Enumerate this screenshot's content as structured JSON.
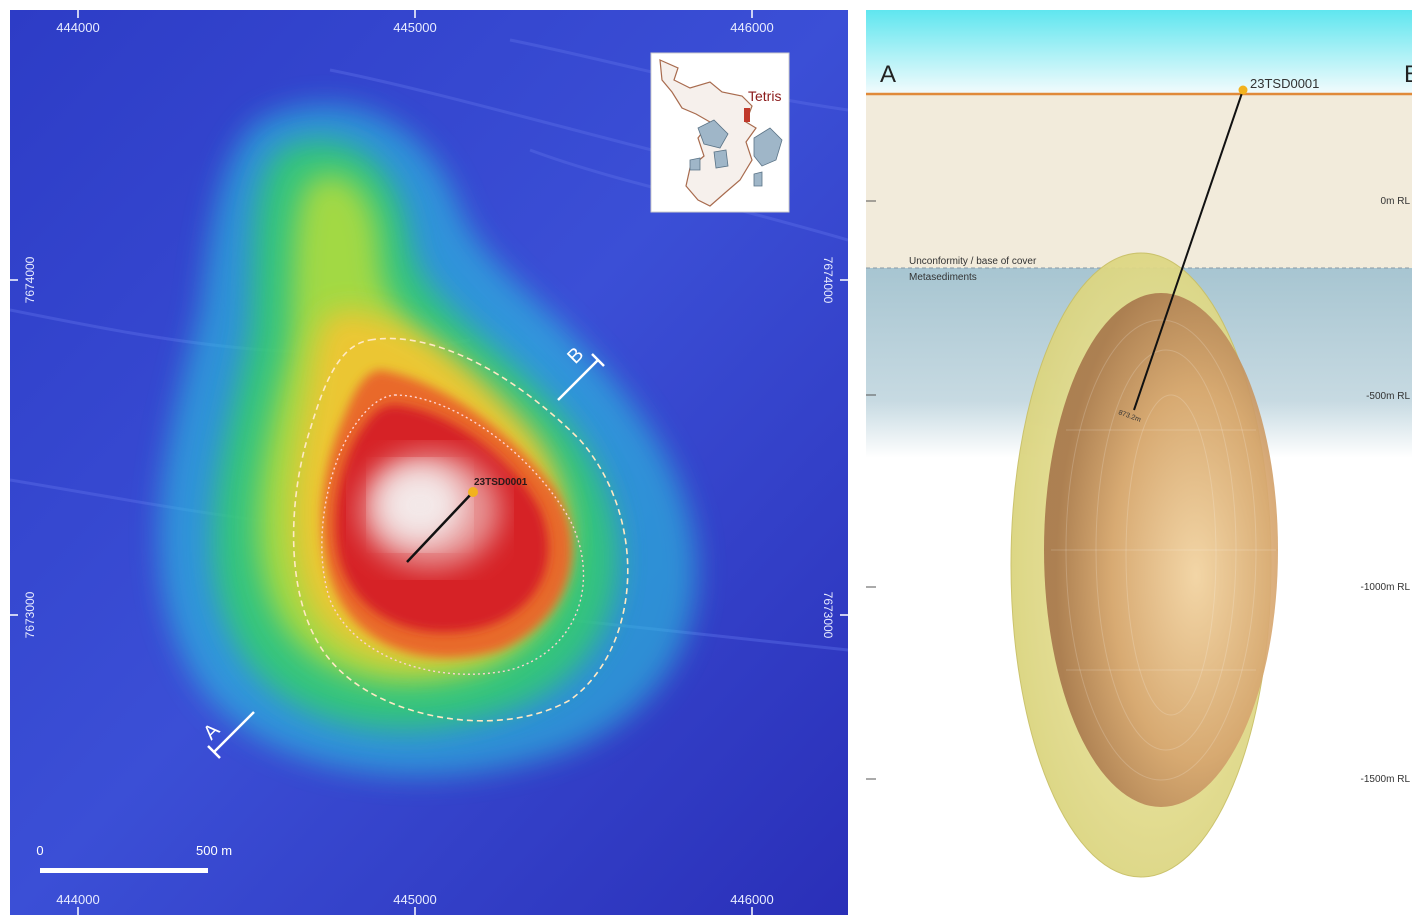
{
  "map": {
    "grid_labels_x": [
      "444000",
      "445000",
      "446000"
    ],
    "grid_labels_y": [
      "7674000",
      "7673000"
    ],
    "drillhole_label": "23TSD0001",
    "section_start_label": "A",
    "section_end_label": "B",
    "scale_zero": "0",
    "scale_length": "500 m",
    "inset_title": "Tetris",
    "colors": {
      "background_low": "#3a3fd0",
      "anomaly_high": "#f4ecec",
      "anomaly_red": "#d8262a",
      "drillhole_collar": "#f2b21d",
      "contour_line": "#ffe9c4"
    }
  },
  "section": {
    "end_label_a": "A",
    "end_label_b": "B",
    "drillhole_label": "23TSD0001",
    "rl_labels": [
      "0m RL",
      "-500m RL",
      "-1000m RL",
      "-1500m RL"
    ],
    "unconformity_label": "Unconformity / base of cover",
    "basement_label": "Metasediments",
    "hole_depth_label": "873.2m",
    "colors": {
      "sky_top": "#5fe6ef",
      "cover": "#f2ebdb",
      "metasediments": "#a7c5d1",
      "surface_line": "#e08a3a",
      "outer_shell": "#e6e08e",
      "inner_body": "#d3a36c"
    }
  }
}
